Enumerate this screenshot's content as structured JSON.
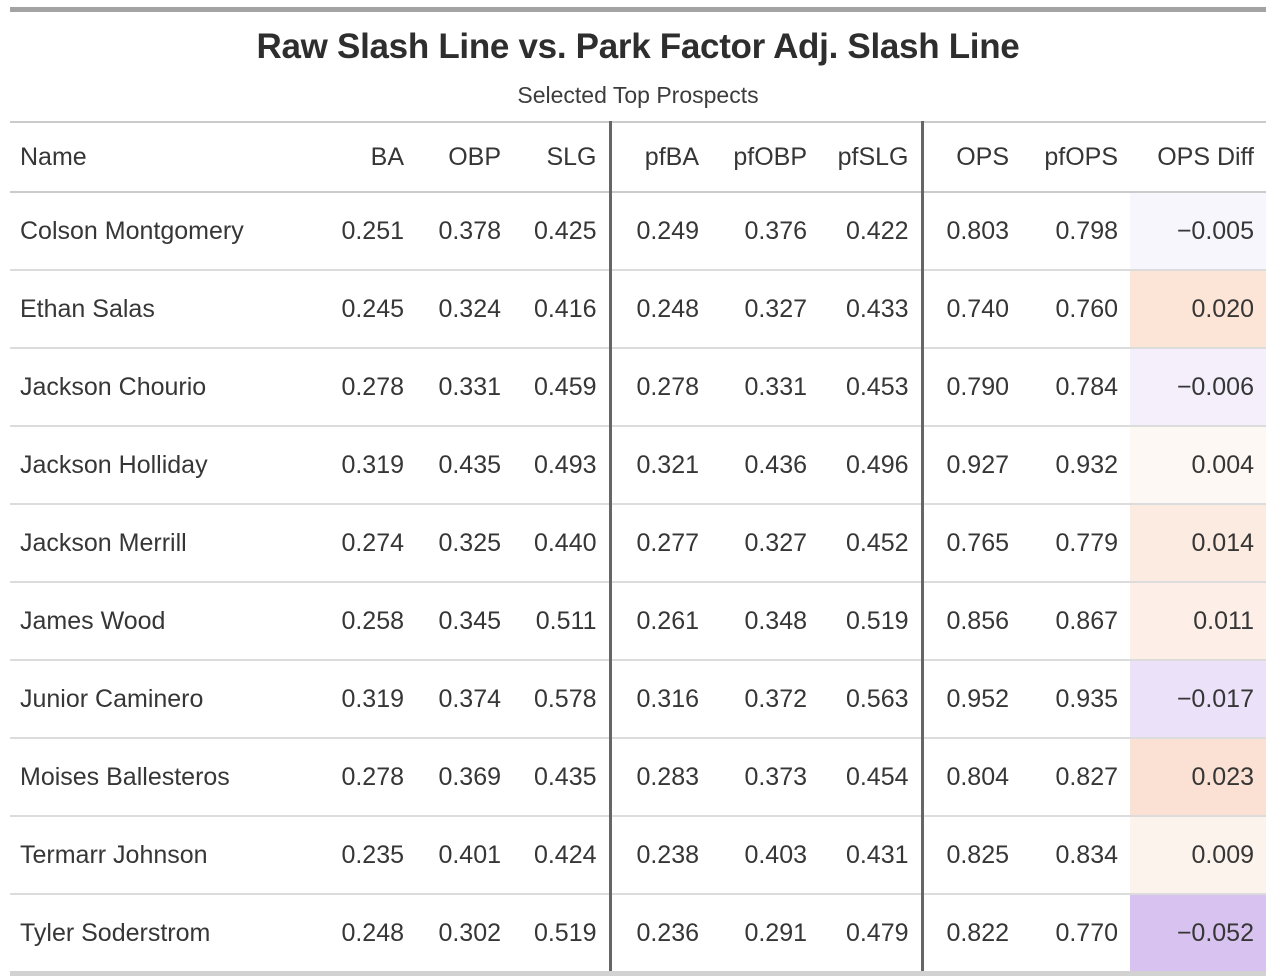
{
  "table": {
    "title": "Raw Slash Line vs. Park Factor Adj. Slash Line",
    "subtitle": "Selected Top Prospects",
    "columns": [
      {
        "key": "name",
        "label": "Name",
        "align": "left",
        "divider": false
      },
      {
        "key": "ba",
        "label": "BA",
        "align": "right",
        "divider": false
      },
      {
        "key": "obp",
        "label": "OBP",
        "align": "right",
        "divider": false
      },
      {
        "key": "slg",
        "label": "SLG",
        "align": "right",
        "divider": false
      },
      {
        "key": "pfba",
        "label": "pfBA",
        "align": "right",
        "divider": true
      },
      {
        "key": "pfobp",
        "label": "pfOBP",
        "align": "right",
        "divider": false
      },
      {
        "key": "pfslg",
        "label": "pfSLG",
        "align": "right",
        "divider": false
      },
      {
        "key": "ops",
        "label": "OPS",
        "align": "right",
        "divider": true
      },
      {
        "key": "pfops",
        "label": "pfOPS",
        "align": "right",
        "divider": false
      },
      {
        "key": "ops_diff",
        "label": "OPS Diff",
        "align": "right",
        "divider": false
      }
    ],
    "rows": [
      {
        "cells": [
          "Colson Montgomery",
          "0.251",
          "0.378",
          "0.425",
          "0.249",
          "0.376",
          "0.422",
          "0.803",
          "0.798",
          "−0.005"
        ],
        "diff_bg": "#f8f6fd"
      },
      {
        "cells": [
          "Ethan Salas",
          "0.245",
          "0.324",
          "0.416",
          "0.248",
          "0.327",
          "0.433",
          "0.740",
          "0.760",
          "0.020"
        ],
        "diff_bg": "#fce4d6"
      },
      {
        "cells": [
          "Jackson Chourio",
          "0.278",
          "0.331",
          "0.459",
          "0.278",
          "0.331",
          "0.453",
          "0.790",
          "0.784",
          "−0.006"
        ],
        "diff_bg": "#f4effb"
      },
      {
        "cells": [
          "Jackson Holliday",
          "0.319",
          "0.435",
          "0.493",
          "0.321",
          "0.436",
          "0.496",
          "0.927",
          "0.932",
          "0.004"
        ],
        "diff_bg": "#fef8f5"
      },
      {
        "cells": [
          "Jackson Merrill",
          "0.274",
          "0.325",
          "0.440",
          "0.277",
          "0.327",
          "0.452",
          "0.765",
          "0.779",
          "0.014"
        ],
        "diff_bg": "#fcebe0"
      },
      {
        "cells": [
          "James Wood",
          "0.258",
          "0.345",
          "0.511",
          "0.261",
          "0.348",
          "0.519",
          "0.856",
          "0.867",
          "0.011"
        ],
        "diff_bg": "#fdefe7"
      },
      {
        "cells": [
          "Junior Caminero",
          "0.319",
          "0.374",
          "0.578",
          "0.316",
          "0.372",
          "0.563",
          "0.952",
          "0.935",
          "−0.017"
        ],
        "diff_bg": "#ebe1f8"
      },
      {
        "cells": [
          "Moises Ballesteros",
          "0.278",
          "0.369",
          "0.435",
          "0.283",
          "0.373",
          "0.454",
          "0.804",
          "0.827",
          "0.023"
        ],
        "diff_bg": "#fbe1d3"
      },
      {
        "cells": [
          "Termarr Johnson",
          "0.235",
          "0.401",
          "0.424",
          "0.238",
          "0.403",
          "0.431",
          "0.825",
          "0.834",
          "0.009"
        ],
        "diff_bg": "#fdf3ed"
      },
      {
        "cells": [
          "Tyler Soderstrom",
          "0.248",
          "0.302",
          "0.519",
          "0.236",
          "0.291",
          "0.479",
          "0.822",
          "0.770",
          "−0.052"
        ],
        "diff_bg": "#d8c2ef"
      }
    ],
    "style": {
      "top_border_color": "#a3a3a3",
      "bottom_border_color": "#d2d2d2",
      "group_divider_color": "#666666",
      "row_separator_color": "#dcdcdc",
      "negative_diff_color": "#d8c2ef",
      "positive_diff_color": "#fbe1d3"
    }
  },
  "chart_data": {
    "type": "table",
    "title": "Raw Slash Line vs. Park Factor Adj. Slash Line",
    "subtitle": "Selected Top Prospects",
    "columns": [
      "Name",
      "BA",
      "OBP",
      "SLG",
      "pfBA",
      "pfOBP",
      "pfSLG",
      "OPS",
      "pfOPS",
      "OPS Diff"
    ],
    "rows": [
      [
        "Colson Montgomery",
        0.251,
        0.378,
        0.425,
        0.249,
        0.376,
        0.422,
        0.803,
        0.798,
        -0.005
      ],
      [
        "Ethan Salas",
        0.245,
        0.324,
        0.416,
        0.248,
        0.327,
        0.433,
        0.74,
        0.76,
        0.02
      ],
      [
        "Jackson Chourio",
        0.278,
        0.331,
        0.459,
        0.278,
        0.331,
        0.453,
        0.79,
        0.784,
        -0.006
      ],
      [
        "Jackson Holliday",
        0.319,
        0.435,
        0.493,
        0.321,
        0.436,
        0.496,
        0.927,
        0.932,
        0.004
      ],
      [
        "Jackson Merrill",
        0.274,
        0.325,
        0.44,
        0.277,
        0.327,
        0.452,
        0.765,
        0.779,
        0.014
      ],
      [
        "James Wood",
        0.258,
        0.345,
        0.511,
        0.261,
        0.348,
        0.519,
        0.856,
        0.867,
        0.011
      ],
      [
        "Junior Caminero",
        0.319,
        0.374,
        0.578,
        0.316,
        0.372,
        0.563,
        0.952,
        0.935,
        -0.017
      ],
      [
        "Moises Ballesteros",
        0.278,
        0.369,
        0.435,
        0.283,
        0.373,
        0.454,
        0.804,
        0.827,
        0.023
      ],
      [
        "Termarr Johnson",
        0.235,
        0.401,
        0.424,
        0.238,
        0.403,
        0.431,
        0.825,
        0.834,
        0.009
      ],
      [
        "Tyler Soderstrom",
        0.248,
        0.302,
        0.519,
        0.236,
        0.291,
        0.479,
        0.822,
        0.77,
        -0.052
      ]
    ],
    "notes": "OPS Diff column uses a diverging fill: purple for negative differences, orange/peach for positive; intensity scales with magnitude.",
    "layout": {
      "column_groups": [
        "raw: BA/OBP/SLG",
        "park-factor adjusted: pfBA/pfOBP/pfSLG",
        "summary: OPS/pfOPS/OPS Diff"
      ],
      "grid": "horizontal row separators + vertical group dividers"
    }
  }
}
